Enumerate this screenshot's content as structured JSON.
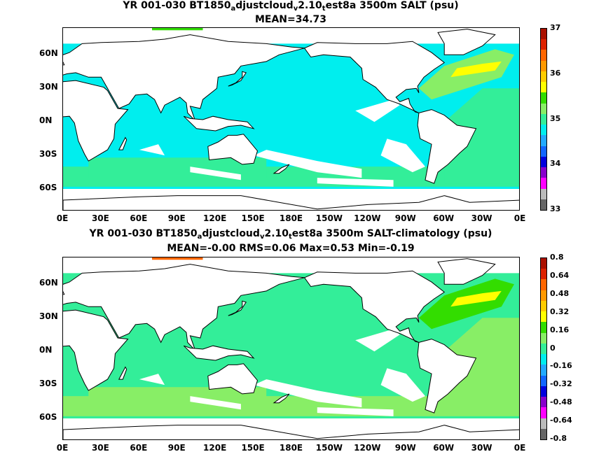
{
  "panels": [
    {
      "title_parts": [
        "YR 001-030 BT1850",
        "a",
        "djustcloud",
        "v",
        "2.10",
        "t",
        "est8a 3500m SALT (psu)"
      ],
      "stats": "MEAN=34.73",
      "ylabels": [
        "60N",
        "30N",
        "0N",
        "30S",
        "60S"
      ],
      "xlabels": [
        "0E",
        "30E",
        "60E",
        "90E",
        "120E",
        "150E",
        "180E",
        "150W",
        "120W",
        "90W",
        "60W",
        "30W",
        "0E"
      ],
      "colorbar_labels": [
        "37",
        "36",
        "35",
        "34",
        "33"
      ],
      "colorbar_colors": [
        "#aa1100",
        "#dd2200",
        "#ff6600",
        "#ff9900",
        "#ffcc00",
        "#ffff00",
        "#33dd00",
        "#88ee66",
        "#33ee99",
        "#00eeee",
        "#22aaff",
        "#1166ff",
        "#0000dd",
        "#8800cc",
        "#ff00ff",
        "#bbbbbb",
        "#666666"
      ],
      "fields": {
        "main_ocean": "#00eeee",
        "atlantic": "#88ee66",
        "atlantic_mid": "#33ee99",
        "southern": "#33ee99",
        "hot_spot": "#ffff00",
        "arctic": "#33dd00"
      }
    },
    {
      "title_parts": [
        "YR 001-030 BT1850",
        "a",
        "djustcloud",
        "v",
        "2.10",
        "t",
        "est8a 3500m SALT-climatology (psu)"
      ],
      "stats": "MEAN=-0.00   RMS=0.06   Max=0.53   Min=-0.19",
      "ylabels": [
        "60N",
        "30N",
        "0N",
        "30S",
        "60S"
      ],
      "xlabels": [
        "0E",
        "30E",
        "60E",
        "90E",
        "120E",
        "150E",
        "180E",
        "150W",
        "120W",
        "90W",
        "60W",
        "30W",
        "0E"
      ],
      "colorbar_labels": [
        "0.8",
        "0.64",
        "0.48",
        "0.32",
        "0.16",
        "0",
        "-0.16",
        "-0.32",
        "-0.48",
        "-0.64",
        "-0.8"
      ],
      "colorbar_colors": [
        "#aa1100",
        "#dd2200",
        "#ff6600",
        "#ff9900",
        "#ffcc00",
        "#ffff00",
        "#33dd00",
        "#88ee66",
        "#33ee99",
        "#00eeee",
        "#22aaff",
        "#1166ff",
        "#0000dd",
        "#8800cc",
        "#ff00ff",
        "#bbbbbb",
        "#666666"
      ],
      "fields": {
        "main_ocean": "#33ee99",
        "atlantic": "#33dd00",
        "atlantic_mid": "#88ee66",
        "southern": "#88ee66",
        "hot_spot": "#ffff00",
        "arctic": "#ff6600"
      }
    }
  ]
}
